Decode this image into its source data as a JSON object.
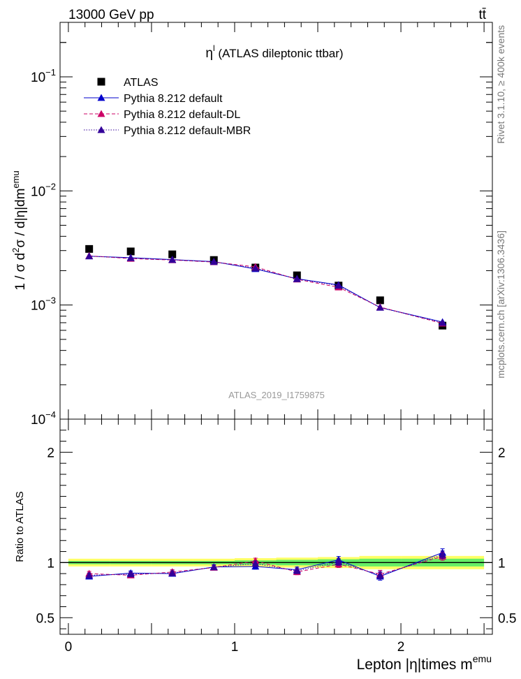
{
  "header": {
    "energy_label": "13000 GeV pp",
    "process_label": "tt̄"
  },
  "side": {
    "rivet_label": "Rivet 3.1.10, ≥ 400k events",
    "source_label": "mcplots.cern.ch [arXiv:1306.3436]"
  },
  "watermark": "ATLAS_2019_I1759875",
  "colors": {
    "atlas": "#000000",
    "default": "#0000cc",
    "default_dl": "#cc0066",
    "default_mbr": "#330099",
    "band_inner": "#66ee66",
    "band_outer": "#ffff66"
  },
  "chart_data": [
    {
      "type": "scatter",
      "panel": "main",
      "title": "η^l (ATLAS dileptonic ttbar)",
      "title_main": "η",
      "title_sup": "l",
      "title_rest": " (ATLAS dileptonic ttbar)",
      "ylabel": "1 / σ d²σ / d|η|dm^emu",
      "ylabel_parts": [
        "1 / σ  d",
        "2",
        "σ / d|η|dm",
        "emu"
      ],
      "yscale": "log",
      "ylim": [
        0.0001,
        0.3
      ],
      "xlim": [
        -0.05,
        2.55
      ],
      "y_tick_labels": [
        {
          "v": 0.1,
          "base": "10",
          "exp": "−1"
        },
        {
          "v": 0.01,
          "base": "10",
          "exp": "−2"
        },
        {
          "v": 0.001,
          "base": "10",
          "exp": "−3"
        },
        {
          "v": 0.0001,
          "base": "10",
          "exp": "−4"
        }
      ],
      "legend_position": "top-left",
      "legend": [
        {
          "label": "ATLAS",
          "key": "atlas"
        },
        {
          "label": "Pythia 8.212 default",
          "key": "default"
        },
        {
          "label": "Pythia 8.212 default-DL",
          "key": "default_dl"
        },
        {
          "label": "Pythia 8.212 default-MBR",
          "key": "default_mbr"
        }
      ],
      "x": [
        0.125,
        0.375,
        0.625,
        0.875,
        1.125,
        1.375,
        1.625,
        1.875,
        2.25
      ],
      "series": [
        {
          "name": "ATLAS",
          "key": "atlas",
          "marker": "square",
          "values": [
            0.0031,
            0.00295,
            0.00278,
            0.00248,
            0.00213,
            0.00182,
            0.00148,
            0.0011,
            0.00066
          ]
        },
        {
          "name": "Pythia 8.212 default",
          "key": "default",
          "marker": "triangle",
          "dash": "",
          "values": [
            0.00268,
            0.0026,
            0.0025,
            0.0024,
            0.00207,
            0.0017,
            0.0015,
            0.00095,
            0.00071
          ]
        },
        {
          "name": "Pythia 8.212 default-DL",
          "key": "default_dl",
          "marker": "triangle",
          "dash": "5,3",
          "values": [
            0.0027,
            0.00255,
            0.00248,
            0.00238,
            0.00216,
            0.00168,
            0.00143,
            0.00096,
            0.00069
          ]
        },
        {
          "name": "Pythia 8.212 default-MBR",
          "key": "default_mbr",
          "marker": "triangle",
          "dash": "1.5,2",
          "values": [
            0.00268,
            0.00258,
            0.00249,
            0.00239,
            0.0021,
            0.00169,
            0.00148,
            0.00095,
            0.0007
          ]
        }
      ]
    },
    {
      "type": "line",
      "panel": "ratio",
      "ylabel": "Ratio to ATLAS",
      "xlabel": "Lepton |η|times m^emu",
      "xlabel_main": "Lepton |η|times m",
      "xlabel_sup": "emu",
      "ylim": [
        0.35,
        2.3
      ],
      "xlim": [
        -0.05,
        2.55
      ],
      "x_ticks": [
        0,
        1,
        2
      ],
      "y_ticks": [
        0.5,
        1,
        2
      ],
      "bins": [
        [
          0,
          0.25
        ],
        [
          0.25,
          0.5
        ],
        [
          0.5,
          0.75
        ],
        [
          0.75,
          1.0
        ],
        [
          1.0,
          1.25
        ],
        [
          1.25,
          1.5
        ],
        [
          1.5,
          1.75
        ],
        [
          1.75,
          2.0
        ],
        [
          2.0,
          2.5
        ]
      ],
      "band_inner": [
        0.015,
        0.015,
        0.015,
        0.015,
        0.02,
        0.025,
        0.03,
        0.035,
        0.035
      ],
      "band_outer": [
        0.035,
        0.035,
        0.035,
        0.035,
        0.04,
        0.045,
        0.05,
        0.06,
        0.06
      ],
      "x": [
        0.125,
        0.375,
        0.625,
        0.875,
        1.125,
        1.375,
        1.625,
        1.875,
        2.25
      ],
      "series": [
        {
          "name": "Pythia 8.212 default",
          "key": "default",
          "dash": "",
          "values": [
            0.875,
            0.905,
            0.9,
            0.96,
            0.965,
            0.935,
            1.025,
            0.875,
            1.09
          ],
          "errors": [
            0.02,
            0.02,
            0.02,
            0.02,
            0.025,
            0.025,
            0.03,
            0.035,
            0.035
          ]
        },
        {
          "name": "Pythia 8.212 default-DL",
          "key": "default_dl",
          "dash": "5,3",
          "values": [
            0.9,
            0.885,
            0.915,
            0.955,
            1.015,
            0.915,
            0.985,
            0.895,
            1.055
          ],
          "errors": [
            0.02,
            0.02,
            0.02,
            0.02,
            0.025,
            0.025,
            0.03,
            0.035,
            0.035
          ]
        },
        {
          "name": "Pythia 8.212 default-MBR",
          "key": "default_mbr",
          "dash": "1.5,2",
          "values": [
            0.885,
            0.895,
            0.905,
            0.958,
            0.99,
            0.925,
            1.005,
            0.885,
            1.07
          ],
          "errors": [
            0.02,
            0.02,
            0.02,
            0.02,
            0.025,
            0.025,
            0.03,
            0.035,
            0.035
          ]
        }
      ]
    }
  ]
}
